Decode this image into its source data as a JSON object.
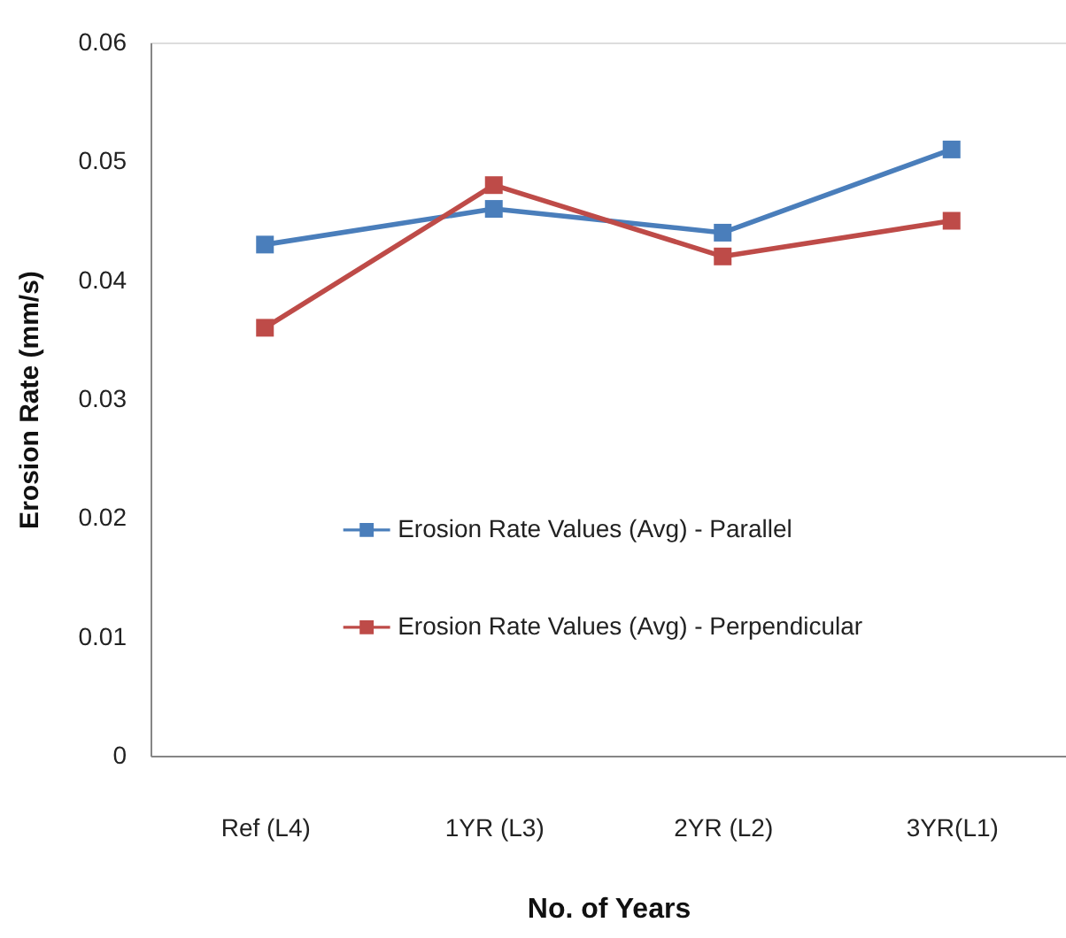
{
  "chart_data": {
    "type": "line",
    "xlabel": "No. of Years",
    "ylabel": "Erosion Rate (mm/s)",
    "categories": [
      "Ref (L4)",
      "1YR (L3)",
      "2YR (L2)",
      "3YR(L1)"
    ],
    "series": [
      {
        "name": "Erosion Rate Values (Avg) - Parallel",
        "color": "#4a7ebb",
        "values": [
          0.043,
          0.046,
          0.044,
          0.051
        ]
      },
      {
        "name": "Erosion Rate Values (Avg) - Perpendicular",
        "color": "#be4b48",
        "values": [
          0.036,
          0.048,
          0.042,
          0.045
        ]
      }
    ],
    "ylim": [
      0,
      0.06
    ],
    "yticks": [
      0,
      0.01,
      0.02,
      0.03,
      0.04,
      0.05,
      0.06
    ],
    "grid": false,
    "legend": "bottom left",
    "marker": "square",
    "line_style": "solid"
  }
}
